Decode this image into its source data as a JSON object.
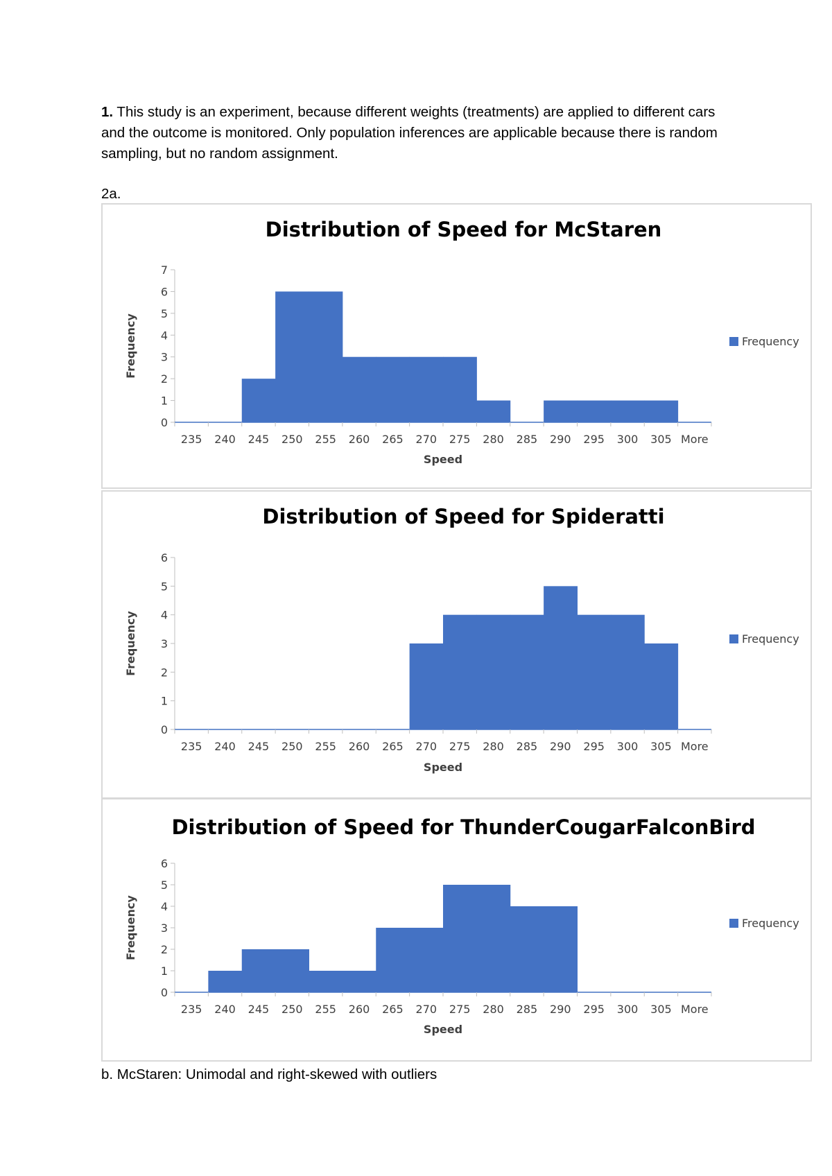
{
  "q1": {
    "number": "1.",
    "text": " This study is an experiment, because different weights (treatments) are applied to different cars and the outcome is monitored. Only population inferences are applicable because there is random sampling, but no random assignment."
  },
  "q2a": {
    "label": "2a."
  },
  "q2b": {
    "text": "b.  McStaren: Unimodal and right-skewed with outliers"
  },
  "colors": {
    "bar": "#4472c4",
    "axis": "#4472c4",
    "border": "#d9d9d9"
  },
  "chart_data": [
    {
      "type": "bar",
      "title": "Distribution of Speed for McStaren",
      "xlabel": "Speed",
      "ylabel": "Frequency",
      "categories": [
        "235",
        "240",
        "245",
        "250",
        "255",
        "260",
        "265",
        "270",
        "275",
        "280",
        "285",
        "290",
        "295",
        "300",
        "305",
        "More"
      ],
      "series": [
        {
          "name": "Frequency",
          "values": [
            0,
            0,
            2,
            6,
            6,
            3,
            3,
            3,
            3,
            1,
            0,
            1,
            1,
            1,
            1,
            0
          ]
        }
      ],
      "ylim": [
        0,
        7
      ],
      "legend": "right"
    },
    {
      "type": "bar",
      "title": "Distribution of Speed for Spideratti",
      "xlabel": "Speed",
      "ylabel": "Frequency",
      "categories": [
        "235",
        "240",
        "245",
        "250",
        "255",
        "260",
        "265",
        "270",
        "275",
        "280",
        "285",
        "290",
        "295",
        "300",
        "305",
        "More"
      ],
      "series": [
        {
          "name": "Frequency",
          "values": [
            0,
            0,
            0,
            0,
            0,
            0,
            0,
            3,
            4,
            4,
            4,
            5,
            4,
            4,
            3,
            0
          ]
        }
      ],
      "ylim": [
        0,
        6
      ],
      "legend": "right"
    },
    {
      "type": "bar",
      "title": "Distribution of Speed for ThunderCougarFalconBird",
      "xlabel": "Speed",
      "ylabel": "Frequency",
      "categories": [
        "235",
        "240",
        "245",
        "250",
        "255",
        "260",
        "265",
        "270",
        "275",
        "280",
        "285",
        "290",
        "295",
        "300",
        "305",
        "More"
      ],
      "series": [
        {
          "name": "Frequency",
          "values": [
            0,
            1,
            2,
            2,
            1,
            1,
            3,
            3,
            5,
            5,
            4,
            4,
            0,
            0,
            0,
            0
          ]
        }
      ],
      "ylim": [
        0,
        6
      ],
      "legend": "right"
    }
  ]
}
